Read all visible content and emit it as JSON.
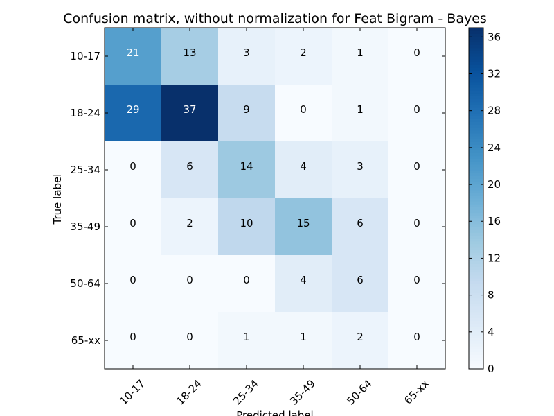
{
  "chart_data": {
    "type": "heatmap",
    "title": "Confusion matrix, without normalization for Feat Bigram - Bayes",
    "xlabel": "Predicted label",
    "ylabel": "True label",
    "x_categories": [
      "10-17",
      "18-24",
      "25-34",
      "35-49",
      "50-64",
      "65-xx"
    ],
    "y_categories": [
      "10-17",
      "18-24",
      "25-34",
      "35-49",
      "50-64",
      "65-xx"
    ],
    "values": [
      [
        21,
        13,
        3,
        2,
        1,
        0
      ],
      [
        29,
        37,
        9,
        0,
        1,
        0
      ],
      [
        0,
        6,
        14,
        4,
        3,
        0
      ],
      [
        0,
        2,
        10,
        15,
        6,
        0
      ],
      [
        0,
        0,
        0,
        4,
        6,
        0
      ],
      [
        0,
        0,
        1,
        1,
        2,
        0
      ]
    ],
    "colormap": "Blues",
    "color_range": [
      0,
      37
    ],
    "colorbar_ticks": [
      0,
      4,
      8,
      12,
      16,
      20,
      24,
      28,
      32,
      36
    ]
  }
}
